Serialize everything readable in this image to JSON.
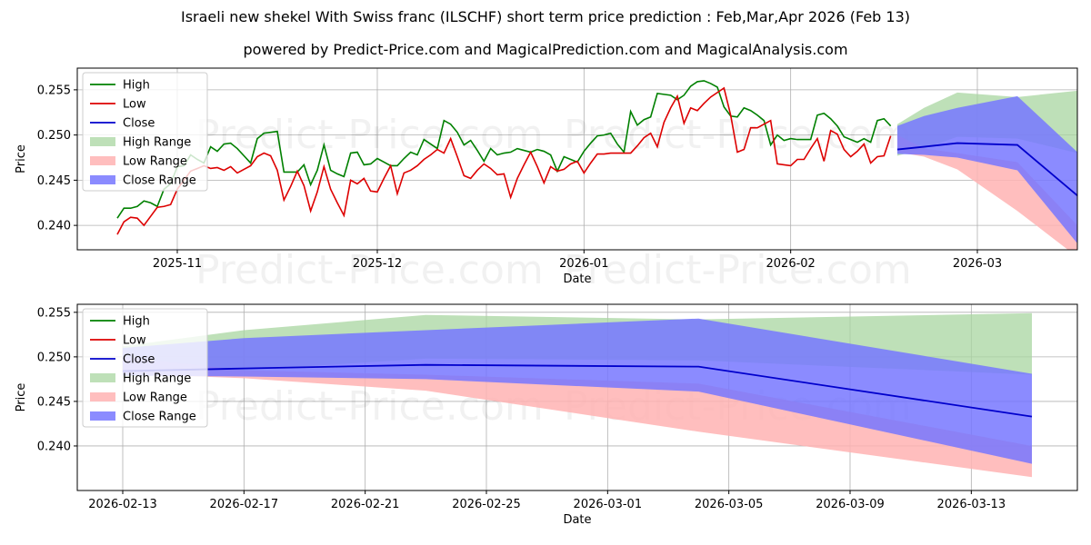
{
  "title": "Israeli new shekel With Swiss franc (ILSCHF) short term price prediction : Feb,Mar,Apr 2026 (Feb 13)",
  "subtitle": "powered by Predict-Price.com and MagicalPrediction.com and MagicalAnalysis.com",
  "watermark": "Predict-Price.com",
  "colors": {
    "high": "#008000",
    "low": "#dd0000",
    "close": "#0000cc",
    "high_range": "#a8d5a0",
    "low_range": "#ffb3b3",
    "close_range": "#7777ff"
  },
  "chart_data": [
    {
      "type": "line",
      "xlabel": "Date",
      "ylabel": "Price",
      "ylim": [
        0.2373,
        0.2574
      ],
      "xlim": [
        -5,
        145
      ],
      "yticks": [
        0.24,
        0.245,
        0.25,
        0.255
      ],
      "ytick_labels": [
        "0.240",
        "0.245",
        "0.250",
        "0.255"
      ],
      "xticks": [
        10,
        40,
        71,
        102,
        130
      ],
      "xtick_labels": [
        "2025-11",
        "2025-12",
        "2026-01",
        "2026-02",
        "2026-03"
      ],
      "grid": true,
      "legend": "top-left",
      "legend_labels": [
        "High",
        "Low",
        "Close",
        "High Range",
        "Low Range",
        "Close Range"
      ],
      "x_start": 1,
      "history_high": [
        0.2408,
        0.2419,
        0.2419,
        0.2421,
        0.2427,
        0.2425,
        0.2421,
        0.244,
        0.2446,
        0.2465,
        0.2466,
        0.2478,
        0.2473,
        0.2469,
        0.2487,
        0.2482,
        0.249,
        0.2491,
        0.2485,
        0.2477,
        0.2469,
        0.2496,
        0.2502,
        0.2503,
        0.2504,
        0.2459,
        0.2459,
        0.2459,
        0.2467,
        0.2445,
        0.2461,
        0.2489,
        0.2461,
        0.2457,
        0.2454,
        0.248,
        0.2481,
        0.2467,
        0.2468,
        0.2474,
        0.247,
        0.2466,
        0.2466,
        0.2474,
        0.2481,
        0.2478,
        0.2495,
        0.249,
        0.2485,
        0.2516,
        0.2512,
        0.2503,
        0.2489,
        0.2494,
        0.2483,
        0.2471,
        0.2485,
        0.2478,
        0.248,
        0.2481,
        0.2485,
        0.2483,
        0.2481,
        0.2484,
        0.2482,
        0.2478,
        0.246,
        0.2476,
        0.2473,
        0.247,
        0.2482,
        0.2491,
        0.2499,
        0.25,
        0.2502,
        0.249,
        0.2481,
        0.2526,
        0.2511,
        0.2517,
        0.252,
        0.2546,
        0.2545,
        0.2544,
        0.2539,
        0.2544,
        0.2554,
        0.2559,
        0.256,
        0.2557,
        0.2553,
        0.2531,
        0.2521,
        0.252,
        0.253,
        0.2527,
        0.2522,
        0.2516,
        0.2489,
        0.25,
        0.2494,
        0.2496,
        0.2495,
        0.2495,
        0.2495,
        0.2522,
        0.2524,
        0.2518,
        0.251,
        0.2498,
        0.2495,
        0.2492,
        0.2496,
        0.2492,
        0.2516,
        0.2518,
        0.251
      ],
      "history_low": [
        0.239,
        0.2404,
        0.2409,
        0.2408,
        0.24,
        0.241,
        0.242,
        0.2421,
        0.2423,
        0.244,
        0.245,
        0.246,
        0.2463,
        0.2466,
        0.2463,
        0.2464,
        0.2461,
        0.2465,
        0.2458,
        0.2462,
        0.2466,
        0.2476,
        0.248,
        0.2477,
        0.2461,
        0.2428,
        0.2443,
        0.246,
        0.2444,
        0.2416,
        0.2437,
        0.2465,
        0.244,
        0.2425,
        0.2411,
        0.245,
        0.2446,
        0.2452,
        0.2438,
        0.2437,
        0.2452,
        0.2466,
        0.2435,
        0.2458,
        0.2461,
        0.2466,
        0.2473,
        0.2478,
        0.2484,
        0.248,
        0.2496,
        0.2476,
        0.2455,
        0.2452,
        0.2461,
        0.2468,
        0.2463,
        0.2456,
        0.2457,
        0.2431,
        0.2452,
        0.2467,
        0.2481,
        0.2465,
        0.2447,
        0.2465,
        0.246,
        0.2462,
        0.2468,
        0.2471,
        0.2458,
        0.2469,
        0.2479,
        0.2479,
        0.248,
        0.248,
        0.248,
        0.248,
        0.2488,
        0.2497,
        0.2502,
        0.2487,
        0.2514,
        0.253,
        0.2543,
        0.2513,
        0.253,
        0.2527,
        0.2535,
        0.2542,
        0.2547,
        0.2552,
        0.2522,
        0.2481,
        0.2484,
        0.2508,
        0.2508,
        0.2512,
        0.2516,
        0.2468,
        0.2467,
        0.2466,
        0.2473,
        0.2473,
        0.2485,
        0.2496,
        0.2471,
        0.2505,
        0.2501,
        0.2484,
        0.2476,
        0.2482,
        0.249,
        0.2469,
        0.2476,
        0.2477,
        0.2499,
        0.2481
      ],
      "forecast_x_days": [
        118,
        122,
        127,
        136,
        145
      ],
      "close": [
        0.2484,
        0.2487,
        0.2491,
        0.2489,
        0.2433
      ],
      "high_range_upper": [
        0.2512,
        0.253,
        0.2547,
        0.2542,
        0.2549
      ],
      "high_range_lower": [
        0.2477,
        0.2485,
        0.2498,
        0.2496,
        0.248
      ],
      "low_range_upper": [
        0.25,
        0.2485,
        0.248,
        0.247,
        0.24
      ],
      "low_range_lower": [
        0.2481,
        0.2476,
        0.2462,
        0.2416,
        0.2365
      ],
      "close_range_upper": [
        0.251,
        0.2521,
        0.253,
        0.2543,
        0.2481
      ],
      "close_range_lower": [
        0.2479,
        0.2478,
        0.2475,
        0.2461,
        0.238
      ]
    },
    {
      "type": "line",
      "xlabel": "Date",
      "ylabel": "Price",
      "ylim": [
        0.235,
        0.2559
      ],
      "xlim": [
        -1.5,
        31.5
      ],
      "yticks": [
        0.24,
        0.245,
        0.25,
        0.255
      ],
      "ytick_labels": [
        "0.240",
        "0.245",
        "0.250",
        "0.255"
      ],
      "xticks": [
        0,
        4,
        8,
        12,
        16,
        20,
        24,
        28
      ],
      "xtick_labels": [
        "2026-02-13",
        "2026-02-17",
        "2026-02-21",
        "2026-02-25",
        "2026-03-01",
        "2026-03-05",
        "2026-03-09",
        "2026-03-13"
      ],
      "grid": true,
      "legend": "top-left",
      "legend_labels": [
        "High",
        "Low",
        "Close",
        "High Range",
        "Low Range",
        "Close Range"
      ],
      "forecast_x_days": [
        0,
        4,
        10,
        19,
        30
      ],
      "close": [
        0.2484,
        0.2487,
        0.2491,
        0.2489,
        0.2433
      ],
      "high_range_upper": [
        0.2512,
        0.253,
        0.2547,
        0.2542,
        0.2549
      ],
      "high_range_lower": [
        0.2477,
        0.2485,
        0.2498,
        0.2496,
        0.248
      ],
      "low_range_upper": [
        0.25,
        0.2485,
        0.248,
        0.247,
        0.24
      ],
      "low_range_lower": [
        0.2481,
        0.2476,
        0.2462,
        0.2416,
        0.2365
      ],
      "close_range_upper": [
        0.251,
        0.2521,
        0.253,
        0.2543,
        0.2481
      ],
      "close_range_lower": [
        0.2479,
        0.2478,
        0.2475,
        0.2461,
        0.238
      ]
    }
  ]
}
